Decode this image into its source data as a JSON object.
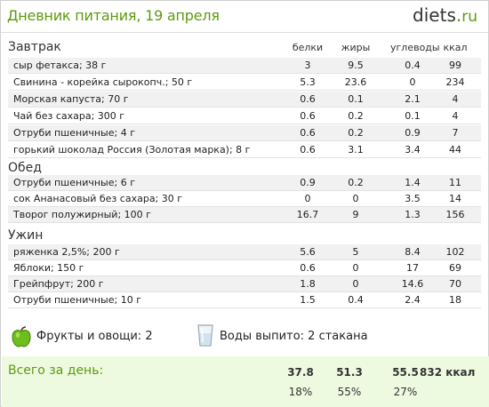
{
  "header": {
    "title": "Дневник питания, 19 апреля",
    "logo_main": "diets",
    "logo_dot": ".",
    "logo_suffix": "ru"
  },
  "columns": {
    "protein": "белки",
    "fat": "жиры",
    "carbs": "углеводы",
    "kcal": "ккал"
  },
  "meals": [
    {
      "title": "Завтрак",
      "items": [
        {
          "name": "сыр фетакса; 38 г",
          "protein": "3",
          "fat": "9.5",
          "carbs": "0.4",
          "kcal": "99"
        },
        {
          "name": "Свинина - корейка сырокопч.; 50 г",
          "protein": "5.3",
          "fat": "23.6",
          "carbs": "0",
          "kcal": "234"
        },
        {
          "name": "Морская капуста; 70 г",
          "protein": "0.6",
          "fat": "0.1",
          "carbs": "2.1",
          "kcal": "4"
        },
        {
          "name": "Чай без сахара; 300 г",
          "protein": "0.6",
          "fat": "0.2",
          "carbs": "0.1",
          "kcal": "4"
        },
        {
          "name": "Отруби пшеничные; 4 г",
          "protein": "0.6",
          "fat": "0.2",
          "carbs": "0.9",
          "kcal": "7"
        },
        {
          "name": "горький шоколад Россия (Золотая марка); 8 г",
          "protein": "0.6",
          "fat": "3.1",
          "carbs": "3.4",
          "kcal": "44"
        }
      ]
    },
    {
      "title": "Обед",
      "items": [
        {
          "name": "Отруби пшеничные; 6 г",
          "protein": "0.9",
          "fat": "0.2",
          "carbs": "1.4",
          "kcal": "11"
        },
        {
          "name": "сок Ананасовый без сахара; 30 г",
          "protein": "0",
          "fat": "0",
          "carbs": "3.5",
          "kcal": "14"
        },
        {
          "name": "Творог полужирный; 100 г",
          "protein": "16.7",
          "fat": "9",
          "carbs": "1.3",
          "kcal": "156"
        }
      ]
    },
    {
      "title": "Ужин",
      "items": [
        {
          "name": "ряженка 2,5%; 200 г",
          "protein": "5.6",
          "fat": "5",
          "carbs": "8.4",
          "kcal": "102"
        },
        {
          "name": "Яблоки; 150 г",
          "protein": "0.6",
          "fat": "0",
          "carbs": "17",
          "kcal": "69"
        },
        {
          "name": "Грейпфрут; 200 г",
          "protein": "1.8",
          "fat": "0",
          "carbs": "14.6",
          "kcal": "70"
        },
        {
          "name": "Отруби пшеничные; 10 г",
          "protein": "1.5",
          "fat": "0.4",
          "carbs": "2.4",
          "kcal": "18"
        }
      ]
    }
  ],
  "extras": {
    "fruits_label": "Фрукты и овощи: 2",
    "water_label": "Воды выпито: 2 стакана",
    "icons": [
      "green-apple-icon",
      "water-glass-icon"
    ]
  },
  "totals": {
    "label": "Всего за день:",
    "protein": "37.8",
    "fat": "51.3",
    "carbs": "55.5",
    "kcal": "832 ккал",
    "protein_pct": "18%",
    "fat_pct": "55%",
    "carbs_pct": "27%"
  },
  "colors": {
    "accent": "#5e9a10",
    "total_bg": "#eefae0",
    "row_alt": "#f1f1f1"
  }
}
